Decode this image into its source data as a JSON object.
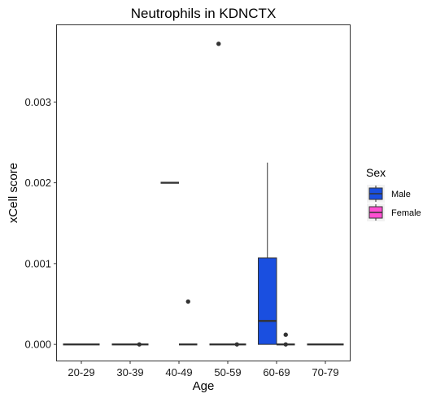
{
  "chart_data": {
    "type": "box",
    "title": "Neutrophils in KDNCTX",
    "xlabel": "Age",
    "ylabel": "xCell score",
    "categories": [
      "20-29",
      "30-39",
      "40-49",
      "50-59",
      "60-69",
      "70-79"
    ],
    "yticks": [
      0.0,
      0.001,
      0.002,
      0.003
    ],
    "ytick_labels": [
      "0.000",
      "0.001",
      "0.002",
      "0.003"
    ],
    "ylim": [
      -0.0002,
      0.00395
    ],
    "grid": false,
    "legend": {
      "title": "Sex",
      "placement": "right",
      "entries": [
        {
          "name": "Male",
          "color": "#1a4fe0"
        },
        {
          "name": "Female",
          "color": "#ff4fd2"
        }
      ]
    },
    "series": [
      {
        "name": "Male",
        "color": "#1a4fe0",
        "boxes": [
          {
            "category": "20-29",
            "min": 0,
            "q1": 0,
            "median": 0,
            "q3": 0,
            "max": 0,
            "outliers": []
          },
          {
            "category": "30-39",
            "min": 0,
            "q1": 0,
            "median": 0,
            "q3": 0,
            "max": 0,
            "outliers": []
          },
          {
            "category": "40-49",
            "min": 0.002,
            "q1": 0.002,
            "median": 0.002,
            "q3": 0.002,
            "max": 0.002,
            "outliers": []
          },
          {
            "category": "50-59",
            "min": 0,
            "q1": 0,
            "median": 0,
            "q3": 0,
            "max": 0,
            "outliers": [
              0.00372
            ]
          },
          {
            "category": "60-69",
            "min": 0,
            "q1": 0,
            "median": 0.00029,
            "q3": 0.00107,
            "max": 0.00225,
            "outliers": []
          },
          {
            "category": "70-79",
            "min": 0,
            "q1": 0,
            "median": 0,
            "q3": 0,
            "max": 0,
            "outliers": []
          }
        ]
      },
      {
        "name": "Female",
        "color": "#ff4fd2",
        "boxes": [
          {
            "category": "20-29",
            "min": 0,
            "q1": 0,
            "median": 0,
            "q3": 0,
            "max": 0,
            "outliers": []
          },
          {
            "category": "30-39",
            "min": 0,
            "q1": 0,
            "median": 0,
            "q3": 0,
            "max": 0,
            "outliers": [
              0
            ]
          },
          {
            "category": "40-49",
            "min": 0,
            "q1": 0,
            "median": 0,
            "q3": 0,
            "max": 0,
            "outliers": [
              0.00053
            ]
          },
          {
            "category": "50-59",
            "min": 0,
            "q1": 0,
            "median": 0,
            "q3": 0,
            "max": 0,
            "outliers": [
              0
            ]
          },
          {
            "category": "60-69",
            "min": 0,
            "q1": 0,
            "median": 0,
            "q3": 0,
            "max": 0,
            "outliers": [
              0.00012,
              0
            ]
          },
          {
            "category": "70-79",
            "min": 0,
            "q1": 0,
            "median": 0,
            "q3": 0,
            "max": 0,
            "outliers": []
          }
        ]
      }
    ]
  }
}
